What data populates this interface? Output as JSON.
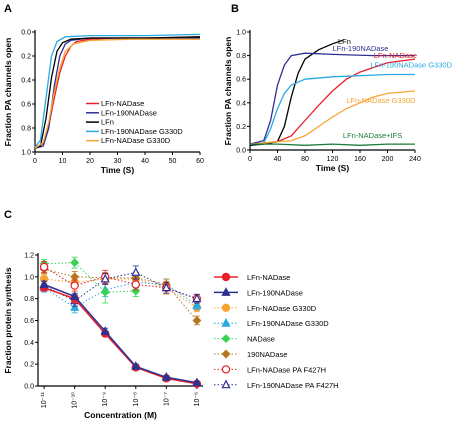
{
  "panel_labels": [
    "A",
    "B",
    "C"
  ],
  "chart_data": [
    {
      "panel": "A",
      "type": "line",
      "xlabel": "Time (S)",
      "ylabel": "Fraction PA channels open",
      "xlim": [
        0,
        60
      ],
      "ylim": [
        1.0,
        0.0
      ],
      "y_reversed": true,
      "xticks": [
        0,
        10,
        20,
        30,
        40,
        50,
        60
      ],
      "yticks": [
        0.0,
        0.2,
        0.4,
        0.6,
        0.8,
        1.0
      ],
      "ytick_labels": [
        "0.0",
        "0.2",
        "0.4",
        "0.6",
        "0.8",
        "1.0"
      ],
      "legend_position": "bottom-right",
      "series": [
        {
          "name": "LFn-NADase",
          "color": "#e8202a",
          "points": [
            [
              0,
              0.96
            ],
            [
              3,
              0.93
            ],
            [
              5,
              0.78
            ],
            [
              7,
              0.55
            ],
            [
              9,
              0.34
            ],
            [
              11,
              0.2
            ],
            [
              13,
              0.12
            ],
            [
              15,
              0.08
            ],
            [
              20,
              0.06
            ],
            [
              30,
              0.05
            ],
            [
              45,
              0.05
            ],
            [
              60,
              0.04
            ]
          ]
        },
        {
          "name": "LFn-190NADase",
          "color": "#2e3192",
          "points": [
            [
              0,
              0.97
            ],
            [
              3,
              0.95
            ],
            [
              5,
              0.8
            ],
            [
              7,
              0.45
            ],
            [
              9,
              0.2
            ],
            [
              11,
              0.1
            ],
            [
              13,
              0.07
            ],
            [
              20,
              0.05
            ],
            [
              35,
              0.05
            ],
            [
              60,
              0.05
            ]
          ]
        },
        {
          "name": "LFn",
          "color": "#000000",
          "points": [
            [
              0,
              0.97
            ],
            [
              2,
              0.95
            ],
            [
              4,
              0.72
            ],
            [
              6,
              0.38
            ],
            [
              8,
              0.16
            ],
            [
              10,
              0.09
            ],
            [
              13,
              0.06
            ],
            [
              20,
              0.05
            ],
            [
              40,
              0.05
            ],
            [
              60,
              0.04
            ]
          ]
        },
        {
          "name": "LFn-190NADase G330D",
          "color": "#29abe2",
          "points": [
            [
              0,
              0.96
            ],
            [
              2,
              0.9
            ],
            [
              4,
              0.55
            ],
            [
              6,
              0.2
            ],
            [
              8,
              0.08
            ],
            [
              11,
              0.04
            ],
            [
              20,
              0.03
            ],
            [
              40,
              0.03
            ],
            [
              60,
              0.02
            ]
          ]
        },
        {
          "name": "LFn-NADase G330D",
          "color": "#f7a531",
          "points": [
            [
              0,
              0.97
            ],
            [
              3,
              0.92
            ],
            [
              5,
              0.75
            ],
            [
              7,
              0.5
            ],
            [
              9,
              0.3
            ],
            [
              11,
              0.16
            ],
            [
              14,
              0.1
            ],
            [
              20,
              0.07
            ],
            [
              35,
              0.06
            ],
            [
              60,
              0.06
            ]
          ]
        }
      ]
    },
    {
      "panel": "B",
      "type": "line",
      "xlabel": "Time (S)",
      "ylabel": "Fraction PA channels open",
      "xlim": [
        0,
        240
      ],
      "ylim": [
        0.0,
        1.0
      ],
      "xticks": [
        0,
        40,
        80,
        120,
        160,
        200,
        240
      ],
      "yticks": [
        0.0,
        0.2,
        0.4,
        0.6,
        0.8,
        1.0
      ],
      "ytick_labels": [
        "0.0",
        "0.2",
        "0.4",
        "0.6",
        "0.8",
        "1.0"
      ],
      "series": [
        {
          "name": "LFn",
          "color": "#000000",
          "label_at": [
            128,
            0.9
          ],
          "points": [
            [
              0,
              0.04
            ],
            [
              20,
              0.05
            ],
            [
              40,
              0.07
            ],
            [
              50,
              0.2
            ],
            [
              60,
              0.45
            ],
            [
              70,
              0.65
            ],
            [
              80,
              0.77
            ],
            [
              100,
              0.85
            ],
            [
              120,
              0.9
            ],
            [
              135,
              0.93
            ]
          ]
        },
        {
          "name": "LFn-190NADase",
          "color": "#2e3192",
          "label_at": [
            120,
            0.84
          ],
          "points": [
            [
              0,
              0.05
            ],
            [
              20,
              0.08
            ],
            [
              30,
              0.25
            ],
            [
              40,
              0.55
            ],
            [
              50,
              0.72
            ],
            [
              60,
              0.8
            ],
            [
              80,
              0.82
            ],
            [
              120,
              0.81
            ],
            [
              180,
              0.8
            ],
            [
              240,
              0.8
            ]
          ]
        },
        {
          "name": "LFn-NADase",
          "color": "#e8202a",
          "label_at": [
            180,
            0.78
          ],
          "points": [
            [
              0,
              0.05
            ],
            [
              40,
              0.07
            ],
            [
              60,
              0.12
            ],
            [
              80,
              0.25
            ],
            [
              100,
              0.38
            ],
            [
              120,
              0.5
            ],
            [
              140,
              0.6
            ],
            [
              160,
              0.66
            ],
            [
              180,
              0.7
            ],
            [
              200,
              0.74
            ],
            [
              240,
              0.77
            ]
          ]
        },
        {
          "name": "LFn-190NADase G330D",
          "color": "#29abe2",
          "label_at": [
            175,
            0.7
          ],
          "points": [
            [
              0,
              0.05
            ],
            [
              20,
              0.06
            ],
            [
              30,
              0.18
            ],
            [
              40,
              0.35
            ],
            [
              50,
              0.48
            ],
            [
              60,
              0.55
            ],
            [
              80,
              0.6
            ],
            [
              120,
              0.62
            ],
            [
              160,
              0.63
            ],
            [
              200,
              0.64
            ],
            [
              240,
              0.64
            ]
          ]
        },
        {
          "name": "LFn-NADase G330D",
          "color": "#f7a531",
          "label_at": [
            140,
            0.4
          ],
          "points": [
            [
              0,
              0.05
            ],
            [
              60,
              0.08
            ],
            [
              80,
              0.12
            ],
            [
              100,
              0.2
            ],
            [
              120,
              0.28
            ],
            [
              140,
              0.35
            ],
            [
              160,
              0.4
            ],
            [
              180,
              0.45
            ],
            [
              200,
              0.48
            ],
            [
              240,
              0.5
            ]
          ]
        },
        {
          "name": "LFn-NADase+IFS",
          "color": "#1b7c3a",
          "label_at": [
            135,
            0.1
          ],
          "points": [
            [
              0,
              0.05
            ],
            [
              40,
              0.05
            ],
            [
              80,
              0.04
            ],
            [
              120,
              0.05
            ],
            [
              160,
              0.04
            ],
            [
              200,
              0.05
            ],
            [
              240,
              0.05
            ]
          ]
        }
      ]
    },
    {
      "panel": "C",
      "type": "line",
      "xlabel": "Concentration (M)",
      "ylabel": "Fraction protein synthesis",
      "x_scale": "log",
      "xlim": [
        -11.2,
        -5.8
      ],
      "ylim": [
        0.0,
        1.2
      ],
      "xticks": [
        -11,
        -10,
        -9,
        -8,
        -7,
        -6
      ],
      "xtick_labels": [
        "10⁻¹¹",
        "10⁻¹⁰",
        "10⁻⁹",
        "10⁻⁸",
        "10⁻⁷",
        "10⁻⁶"
      ],
      "yticks": [
        0.0,
        0.2,
        0.4,
        0.6,
        0.8,
        1.0,
        1.2
      ],
      "ytick_labels": [
        "0.0",
        "0.2",
        "0.4",
        "0.6",
        "0.8",
        "1.0",
        "1.2"
      ],
      "legend_position": "right",
      "series": [
        {
          "name": "LFn-NADase",
          "color": "#e8202a",
          "marker": "circle",
          "filled": true,
          "dashed": false,
          "x": [
            -11,
            -10,
            -9,
            -8,
            -7,
            -6
          ],
          "y": [
            0.9,
            0.8,
            0.48,
            0.17,
            0.07,
            0.02
          ],
          "err": [
            0.03,
            0.04,
            0.02,
            0.02,
            0.01,
            0.01
          ]
        },
        {
          "name": "LFn-190NADase",
          "color": "#2e3192",
          "marker": "triangle",
          "filled": true,
          "dashed": false,
          "x": [
            -11,
            -10,
            -9,
            -8,
            -7,
            -6
          ],
          "y": [
            0.93,
            0.82,
            0.5,
            0.18,
            0.08,
            0.03
          ],
          "err": [
            0.03,
            0.03,
            0.03,
            0.02,
            0.01,
            0.01
          ]
        },
        {
          "name": "LFn-NADase G330D",
          "color": "#f7a531",
          "marker": "circle",
          "filled": true,
          "dashed": true,
          "x": [
            -11,
            -10,
            -9,
            -8,
            -7,
            -6
          ],
          "y": [
            0.98,
            0.95,
            0.98,
            0.98,
            0.9,
            0.72
          ],
          "err": [
            0.04,
            0.05,
            0.05,
            0.05,
            0.06,
            0.04
          ]
        },
        {
          "name": "LFn-190NADase G330D",
          "color": "#29abe2",
          "marker": "triangle",
          "filled": true,
          "dashed": true,
          "x": [
            -11,
            -10,
            -9,
            -8,
            -7,
            -6
          ],
          "y": [
            0.9,
            0.72,
            0.88,
            0.95,
            0.93,
            0.74
          ],
          "err": [
            0.04,
            0.05,
            0.06,
            0.05,
            0.05,
            0.04
          ]
        },
        {
          "name": "NADase",
          "color": "#39d353",
          "marker": "diamond",
          "filled": true,
          "dashed": true,
          "x": [
            -11,
            -10,
            -9,
            -8
          ],
          "y": [
            1.12,
            1.13,
            0.86,
            0.87
          ],
          "err": [
            0.04,
            0.05,
            0.1,
            0.05
          ]
        },
        {
          "name": "190NADase",
          "color": "#b5761e",
          "marker": "diamond",
          "filled": true,
          "dashed": true,
          "x": [
            -11,
            -10,
            -9,
            -8,
            -7,
            -6
          ],
          "y": [
            1.07,
            1.0,
            0.99,
            0.99,
            0.93,
            0.6
          ],
          "err": [
            0.04,
            0.05,
            0.05,
            0.05,
            0.05,
            0.04
          ]
        },
        {
          "name": "LFn-NADase PA F427H",
          "color": "#e8202a",
          "marker": "circle",
          "filled": false,
          "dashed": true,
          "x": [
            -11,
            -10,
            -9,
            -8,
            -7,
            -6
          ],
          "y": [
            1.09,
            0.92,
            1.0,
            0.93,
            0.9,
            0.8
          ],
          "err": [
            0.05,
            0.05,
            0.06,
            0.05,
            0.05,
            0.04
          ]
        },
        {
          "name": "LFn-190NADase PA F427H",
          "color": "#2e3192",
          "marker": "triangle",
          "filled": false,
          "dashed": true,
          "x": [
            -11,
            -10,
            -9,
            -8,
            -7,
            -6
          ],
          "y": [
            0.92,
            0.78,
            0.98,
            1.04,
            0.9,
            0.8
          ],
          "err": [
            0.04,
            0.05,
            0.05,
            0.06,
            0.05,
            0.04
          ]
        }
      ]
    }
  ]
}
